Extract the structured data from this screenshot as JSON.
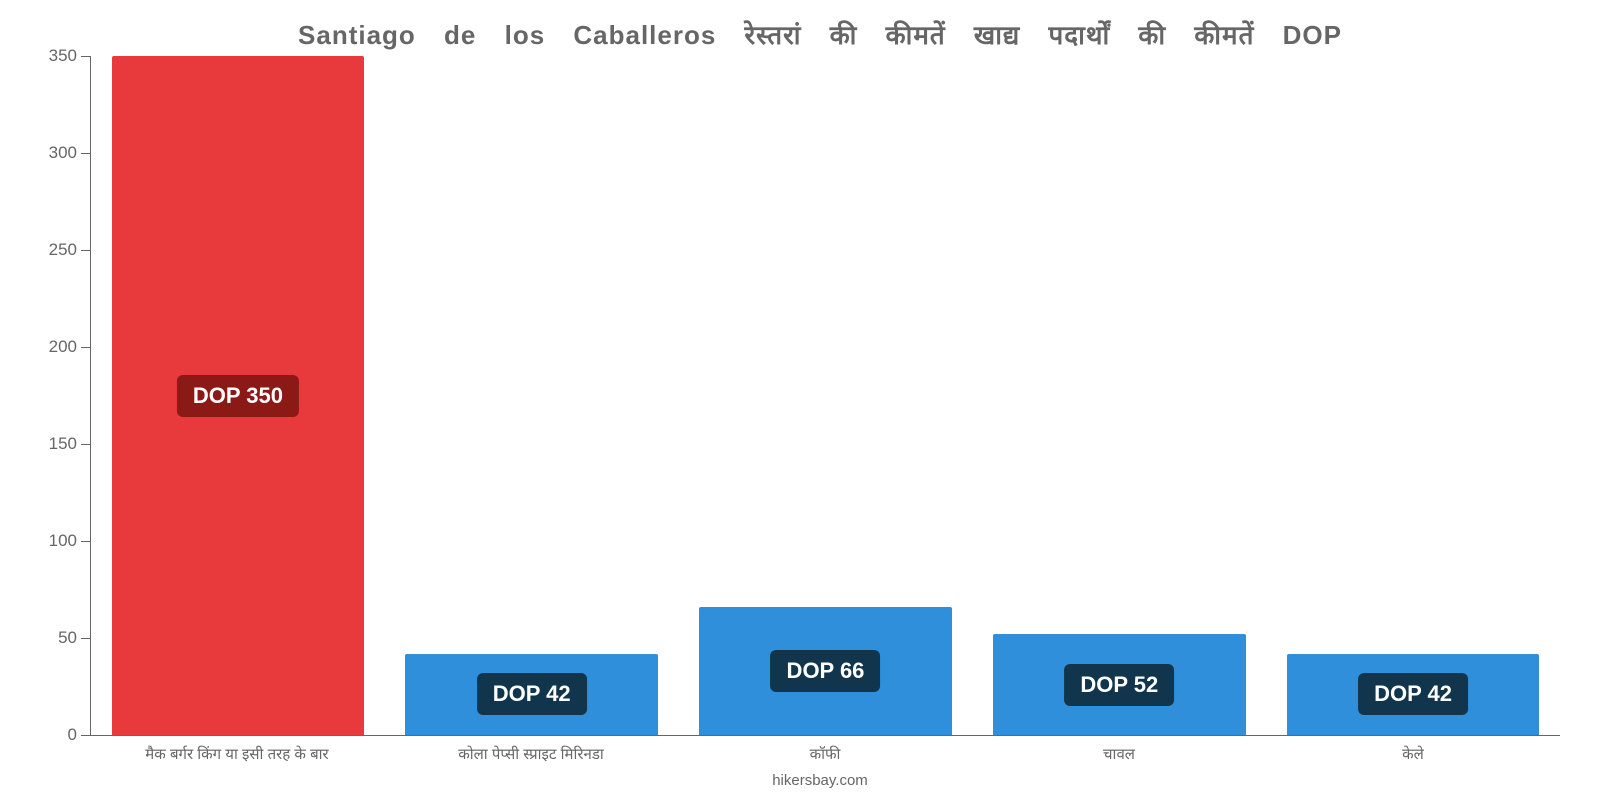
{
  "chart": {
    "type": "bar",
    "title": "Santiago de los Caballeros रेस्तरां की कीमतें खाद्य पदार्थों की कीमतें DOP",
    "title_color": "#666666",
    "title_fontsize": 26,
    "background_color": "#ffffff",
    "axis_color": "#666666",
    "label_color": "#666666",
    "bar_width_pct": 86,
    "ylim": [
      0,
      350
    ],
    "yticks": [
      0,
      50,
      100,
      150,
      200,
      250,
      300,
      350
    ],
    "value_prefix": "DOP ",
    "badge_bg": "rgba(0,0,0,0.35)",
    "badge_text_color": "#ffffff",
    "badge_fontsize": 22,
    "x_label_fontsize": 15,
    "y_label_fontsize": 17,
    "categories": [
      "मैक बर्गर किंग या इसी तरह के बार",
      "कोला पेप्सी स्प्राइट मिरिनडा",
      "कॉफी",
      "चावल",
      "केले"
    ],
    "values": [
      350,
      42,
      66,
      52,
      42
    ],
    "bar_colors": [
      "#e8393c",
      "#2f8fda",
      "#2f8fda",
      "#2f8fda",
      "#2f8fda"
    ],
    "badge_bar_colors": [
      "#8b1a17",
      "#11354d",
      "#11354d",
      "#11354d",
      "#11354d"
    ],
    "source": "hikersbay.com"
  }
}
